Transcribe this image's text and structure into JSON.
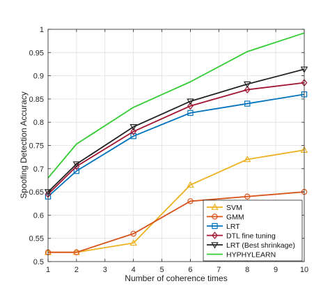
{
  "chart_data": {
    "type": "line",
    "title": "",
    "xlabel": "Number of coherence times",
    "ylabel": "Spoofing Detection Accuracy",
    "xlim": [
      1,
      10
    ],
    "ylim": [
      0.5,
      1
    ],
    "x_ticks": [
      1,
      2,
      3,
      4,
      5,
      6,
      7,
      8,
      9,
      10
    ],
    "y_ticks": [
      0.5,
      0.55,
      0.6,
      0.65,
      0.7,
      0.75,
      0.8,
      0.85,
      0.9,
      0.95,
      1
    ],
    "y_tick_labels": [
      "0.5",
      "0.55",
      "0.6",
      "0.65",
      "0.7",
      "0.75",
      "0.8",
      "0.85",
      "0.9",
      "0.95",
      "1"
    ],
    "grid": true,
    "legend_position": "lower-right",
    "series": [
      {
        "name": "SVM",
        "color": "#EDB120",
        "marker": "triangle-up",
        "x": [
          1,
          2,
          4,
          6,
          8,
          10
        ],
        "y": [
          0.52,
          0.52,
          0.54,
          0.665,
          0.72,
          0.74
        ]
      },
      {
        "name": "GMM",
        "color": "#D95319",
        "marker": "circle",
        "x": [
          1,
          2,
          4,
          6,
          8,
          10
        ],
        "y": [
          0.52,
          0.52,
          0.56,
          0.63,
          0.64,
          0.65
        ]
      },
      {
        "name": "LRT",
        "color": "#0072BD",
        "marker": "square",
        "x": [
          1,
          2,
          4,
          6,
          8,
          10
        ],
        "y": [
          0.64,
          0.695,
          0.77,
          0.82,
          0.84,
          0.86
        ]
      },
      {
        "name": "DTL fine tuning",
        "color": "#A2142F",
        "marker": "diamond",
        "x": [
          1,
          2,
          4,
          6,
          8,
          10
        ],
        "y": [
          0.645,
          0.705,
          0.78,
          0.835,
          0.87,
          0.885
        ]
      },
      {
        "name": "LRT (Best shrinkage)",
        "color": "#222222",
        "marker": "triangle-down",
        "x": [
          1,
          2,
          4,
          6,
          8,
          10
        ],
        "y": [
          0.65,
          0.71,
          0.79,
          0.845,
          0.882,
          0.914
        ]
      },
      {
        "name": "HYPHYLEARN",
        "color": "#33CC33",
        "marker": "none",
        "x": [
          1,
          2,
          4,
          6,
          8,
          10
        ],
        "y": [
          0.68,
          0.753,
          0.832,
          0.887,
          0.952,
          0.992
        ]
      }
    ]
  }
}
